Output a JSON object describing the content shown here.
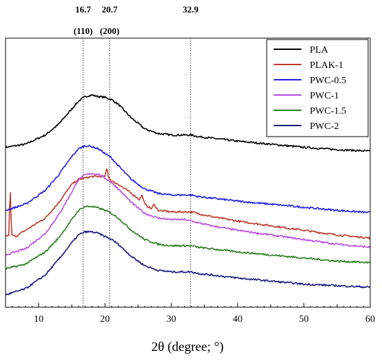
{
  "chart_data": {
    "type": "line",
    "title": "",
    "xlabel": "2θ (degree; °)",
    "ylabel": "",
    "xlim": [
      5,
      60
    ],
    "x_ticks": [
      "10",
      "20",
      "30",
      "40",
      "50",
      "60"
    ],
    "legend_position": "top-right",
    "annotations": [
      {
        "x": 16.7,
        "top": "16.7",
        "bottom": "(110)"
      },
      {
        "x": 20.7,
        "top": "20.7",
        "bottom": "(200)"
      },
      {
        "x": 32.9,
        "top": "32.9",
        "bottom": ""
      }
    ],
    "series": [
      {
        "name": "PLA",
        "color": "#000000",
        "x": [
          5,
          8,
          11,
          13,
          15,
          16,
          17,
          18,
          19,
          20,
          21,
          22,
          24,
          26,
          28,
          30,
          32,
          33,
          34,
          36,
          40,
          45,
          50,
          55,
          60
        ],
        "y": [
          0.74,
          0.76,
          0.82,
          0.89,
          0.99,
          1.04,
          1.07,
          1.08,
          1.07,
          1.065,
          1.05,
          1.02,
          0.93,
          0.86,
          0.83,
          0.82,
          0.82,
          0.82,
          0.81,
          0.8,
          0.78,
          0.76,
          0.74,
          0.725,
          0.715
        ]
      },
      {
        "name": "PLAK-1",
        "color": "#c0392b",
        "x": [
          5,
          5.5,
          5.7,
          5.9,
          6.5,
          8,
          11,
          13,
          15,
          16,
          17,
          18,
          19,
          20,
          20.3,
          20.5,
          20.8,
          21,
          22,
          24,
          25.2,
          25.6,
          26,
          27,
          27.4,
          28,
          30,
          32,
          33,
          34,
          36,
          40,
          45,
          50,
          55,
          60
        ],
        "y": [
          0.16,
          0.17,
          0.48,
          0.17,
          0.16,
          0.2,
          0.28,
          0.38,
          0.5,
          0.53,
          0.54,
          0.55,
          0.55,
          0.55,
          0.61,
          0.55,
          0.53,
          0.52,
          0.5,
          0.44,
          0.4,
          0.43,
          0.37,
          0.34,
          0.37,
          0.33,
          0.32,
          0.32,
          0.32,
          0.31,
          0.29,
          0.26,
          0.23,
          0.2,
          0.17,
          0.15
        ]
      },
      {
        "name": "PWC-0.5",
        "color": "#1f1fe0",
        "x": [
          5,
          8,
          11,
          13,
          15,
          16,
          17,
          18,
          19,
          20,
          21,
          22,
          24,
          26,
          28,
          30,
          32,
          33,
          34,
          36,
          40,
          45,
          50,
          55,
          60
        ],
        "y": [
          0.33,
          0.37,
          0.46,
          0.56,
          0.68,
          0.73,
          0.75,
          0.745,
          0.73,
          0.7,
          0.67,
          0.62,
          0.53,
          0.47,
          0.44,
          0.43,
          0.43,
          0.43,
          0.42,
          0.41,
          0.39,
          0.37,
          0.35,
          0.33,
          0.315
        ]
      },
      {
        "name": "PWC-1",
        "color": "#b94ce0",
        "x": [
          5,
          8,
          11,
          13,
          15,
          16,
          17,
          18,
          19,
          20,
          21,
          22,
          24,
          26,
          28,
          30,
          32,
          33,
          34,
          36,
          40,
          45,
          50,
          55,
          60
        ],
        "y": [
          0.04,
          0.08,
          0.18,
          0.3,
          0.45,
          0.53,
          0.56,
          0.57,
          0.565,
          0.54,
          0.51,
          0.47,
          0.38,
          0.31,
          0.28,
          0.27,
          0.27,
          0.26,
          0.25,
          0.23,
          0.2,
          0.17,
          0.14,
          0.11,
          0.09
        ]
      },
      {
        "name": "PWC-1.5",
        "color": "#2a7d1f",
        "x": [
          5,
          8,
          11,
          13,
          15,
          16,
          17,
          18,
          19,
          20,
          21,
          22,
          24,
          26,
          28,
          30,
          32,
          33,
          34,
          36,
          40,
          45,
          50,
          55,
          60
        ],
        "y": [
          -0.05,
          -0.02,
          0.06,
          0.15,
          0.27,
          0.33,
          0.355,
          0.355,
          0.345,
          0.33,
          0.31,
          0.28,
          0.2,
          0.14,
          0.11,
          0.1,
          0.1,
          0.1,
          0.09,
          0.08,
          0.06,
          0.04,
          0.02,
          0.0,
          -0.01
        ]
      },
      {
        "name": "PWC-2",
        "color": "#1a1a80",
        "x": [
          5,
          8,
          11,
          13,
          15,
          16,
          17,
          18,
          19,
          20,
          21,
          22,
          24,
          26,
          28,
          30,
          32,
          33,
          34,
          36,
          40,
          45,
          50,
          55,
          60
        ],
        "y": [
          -0.22,
          -0.18,
          -0.09,
          0.01,
          0.12,
          0.17,
          0.19,
          0.19,
          0.18,
          0.16,
          0.14,
          0.11,
          0.03,
          -0.03,
          -0.06,
          -0.07,
          -0.07,
          -0.07,
          -0.08,
          -0.09,
          -0.11,
          -0.13,
          -0.15,
          -0.16,
          -0.17
        ]
      }
    ]
  }
}
